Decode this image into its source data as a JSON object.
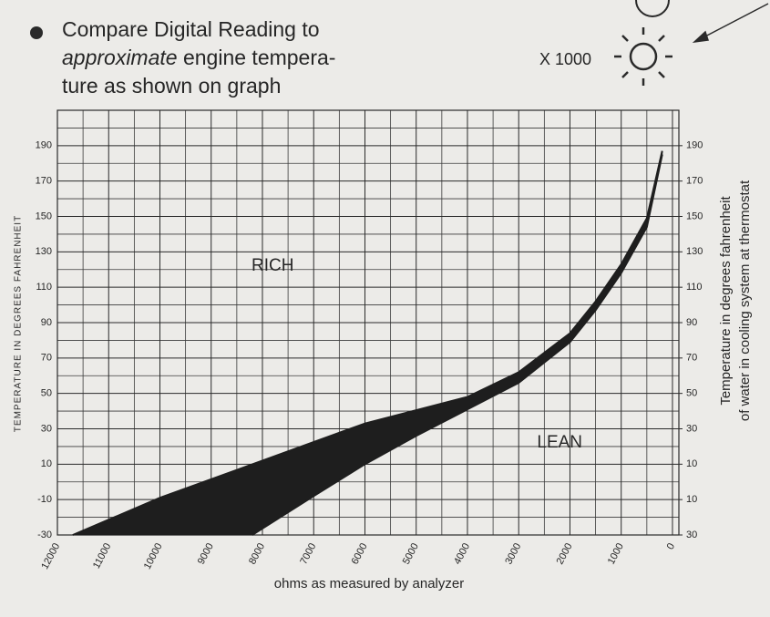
{
  "header": {
    "lines": [
      {
        "before": "Compare Digital Reading to",
        "italic": "",
        "after": ""
      },
      {
        "before": "",
        "italic": "approximate",
        "after": " engine tempera-"
      },
      {
        "before": "ture as shown on graph",
        "italic": "",
        "after": ""
      }
    ],
    "multiplier": "X 1000"
  },
  "chart_data": {
    "type": "area",
    "xlabel": "ohms as measured by analyzer",
    "ylabel": "TEMPERATURE IN DEGREES FAHRENHEIT",
    "y2label": [
      "Temperature in degrees fahrenheit",
      "of water in cooling system at thermostat"
    ],
    "annotations": [
      {
        "text": "RICH",
        "x": 7800,
        "y": 122
      },
      {
        "text": "LEAN",
        "x": 2200,
        "y": 22
      }
    ],
    "xlim": [
      12000,
      -125
    ],
    "xticks": [
      12000,
      11000,
      10000,
      9000,
      8000,
      7000,
      6000,
      5000,
      4000,
      3000,
      2000,
      1000,
      0
    ],
    "ylim": [
      -30,
      210
    ],
    "yticks": [
      -30,
      -10,
      10,
      30,
      50,
      70,
      90,
      110,
      130,
      150,
      170,
      190
    ],
    "y2lim": [
      -30,
      210
    ],
    "y2ticks": [
      {
        "value": -30,
        "label": "30"
      },
      {
        "value": -10,
        "label": "10"
      },
      10,
      30,
      50,
      70,
      90,
      110,
      130,
      150,
      170,
      190
    ],
    "grid": true,
    "color": "#1e1e1e",
    "series": [
      {
        "x": [
          11700,
          10000,
          8000,
          6000,
          4000,
          3000,
          2000,
          1500,
          1000,
          500,
          200
        ],
        "values": [
          -30,
          -9,
          12,
          33,
          48,
          62,
          84,
          102,
          123,
          149,
          187
        ]
      },
      {
        "x": [
          8200,
          7000,
          6000,
          5000,
          4000,
          3000,
          2000,
          1500,
          1000,
          500,
          200
        ],
        "values": [
          -30,
          -8,
          10,
          26,
          41,
          56,
          79,
          97,
          118,
          144,
          185
        ]
      }
    ]
  }
}
